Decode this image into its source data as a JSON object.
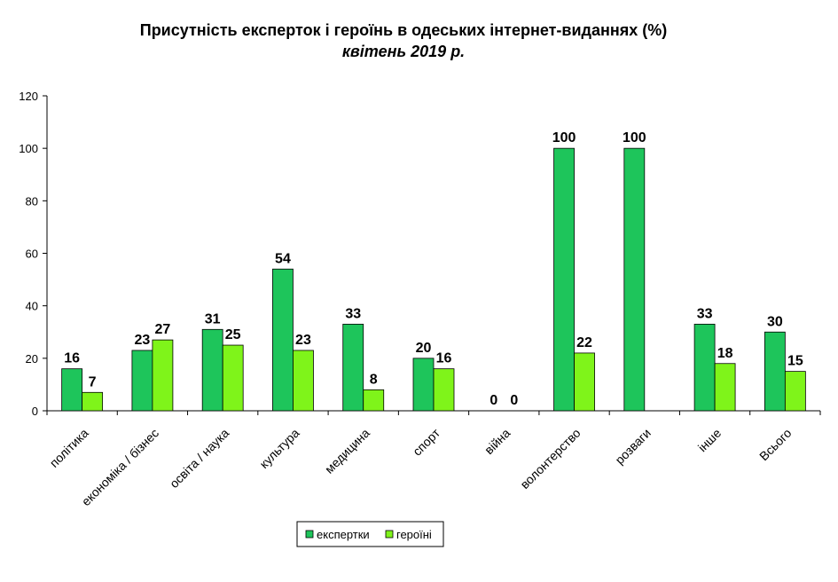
{
  "chart_data": {
    "type": "bar",
    "title": "Присутність експерток і героїнь в одеських інтернет-виданнях (%)",
    "subtitle": "квітень 2019 р.",
    "xlabel": "",
    "ylabel": "",
    "ylim": [
      0,
      120
    ],
    "yticks": [
      0,
      20,
      40,
      60,
      80,
      100,
      120
    ],
    "categories": [
      "політика",
      "економіка / бізнес",
      "освіта / наука",
      "культура",
      "медицина",
      "спорт",
      "війна",
      "волонтерство",
      "розваги",
      "інше",
      "Всього"
    ],
    "series": [
      {
        "name": "експертки",
        "color": "#1EC55B",
        "values": [
          16,
          23,
          31,
          54,
          33,
          20,
          0,
          100,
          100,
          33,
          30
        ]
      },
      {
        "name": "героїні",
        "color": "#7FF41A",
        "values": [
          7,
          27,
          25,
          23,
          8,
          16,
          0,
          22,
          null,
          18,
          15
        ]
      }
    ],
    "legend_position": "bottom",
    "grid": false
  }
}
